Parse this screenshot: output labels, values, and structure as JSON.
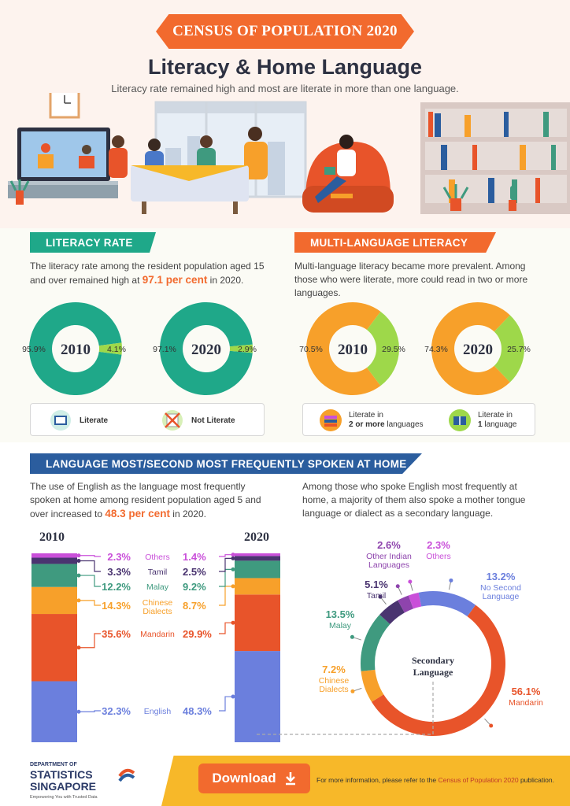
{
  "header": {
    "banner": "CENSUS OF POPULATION 2020",
    "title": "Literacy & Home Language",
    "subtitle": "Literacy rate remained high and most are literate in more than one language."
  },
  "literacy": {
    "heading": "LITERACY RATE",
    "text_before": "The literacy rate among the resident population aged 15 and over remained high at ",
    "highlight": "97.1 per cent",
    "text_after": " in 2020.",
    "legend": {
      "literate": "Literate",
      "not_literate": "Not Literate"
    }
  },
  "multilang": {
    "heading": "MULTI-LANGUAGE LITERACY",
    "text": "Multi-language literacy became more prevalent. Among those who were literate, more could read in two or more languages.",
    "legend": {
      "two_pre": "Literate in",
      "two_bold": "2 or more",
      "two_post": " languages",
      "one_pre": "Literate in",
      "one_bold": "1",
      "one_post": " language"
    }
  },
  "home": {
    "heading": "LANGUAGE MOST/SECOND MOST FREQUENTLY SPOKEN AT HOME",
    "left_before": "The use of English as the language most frequently spoken at home among resident population aged 5 and over increased to ",
    "left_highlight": "48.3 per cent",
    "left_after": " in 2020.",
    "right_text": "Among those who spoke English most frequently at home, a majority of them also spoke a mother tongue language or dialect as a secondary language."
  },
  "footer": {
    "download": "Download",
    "info_before": "For more information, please refer to the ",
    "info_link": "Census of Population 2020",
    "info_after": " publication.",
    "logo_top": "DEPARTMENT OF",
    "logo_mid": "STATISTICS",
    "logo_bot": "SINGAPORE",
    "logo_tag": "Empowering You with Trusted Data"
  },
  "colors": {
    "green": "#1fa889",
    "light_green": "#9ed84a",
    "orange": "#f26a2e",
    "amber": "#f7a02a",
    "english": "#6b7fdd",
    "mandarin": "#e8542a",
    "dialects": "#f7a02a",
    "malay": "#3f9a7f",
    "tamil": "#4a3470",
    "others": "#c94fd9",
    "indian": "#8e44ad",
    "no_second": "#6b7fdd"
  },
  "chart_data": [
    {
      "type": "pie",
      "name": "literacy-2010",
      "title": "2010",
      "labels": [
        "Literate",
        "Not Literate"
      ],
      "values": [
        95.9,
        4.1
      ],
      "value_labels": [
        "95.9%",
        "4.1%"
      ]
    },
    {
      "type": "pie",
      "name": "literacy-2020",
      "title": "2020",
      "labels": [
        "Literate",
        "Not Literate"
      ],
      "values": [
        97.1,
        2.9
      ],
      "value_labels": [
        "97.1%",
        "2.9%"
      ]
    },
    {
      "type": "pie",
      "name": "multilang-2010",
      "title": "2010",
      "labels": [
        "Literate in 2 or more languages",
        "Literate in 1 language"
      ],
      "values": [
        70.5,
        29.5
      ],
      "value_labels": [
        "70.5%",
        "29.5%"
      ]
    },
    {
      "type": "pie",
      "name": "multilang-2020",
      "title": "2020",
      "labels": [
        "Literate in 2 or more languages",
        "Literate in 1 language"
      ],
      "values": [
        74.3,
        25.7
      ],
      "value_labels": [
        "74.3%",
        "25.7%"
      ]
    },
    {
      "type": "bar",
      "name": "home-language",
      "stacked": true,
      "categories": [
        "2010",
        "2020"
      ],
      "series": [
        {
          "name": "English",
          "values": [
            32.3,
            48.3
          ],
          "value_labels": [
            "32.3%",
            "48.3%"
          ]
        },
        {
          "name": "Mandarin",
          "values": [
            35.6,
            29.9
          ],
          "value_labels": [
            "35.6%",
            "29.9%"
          ]
        },
        {
          "name": "Chinese Dialects",
          "values": [
            14.3,
            8.7
          ],
          "value_labels": [
            "14.3%",
            "8.7%"
          ]
        },
        {
          "name": "Malay",
          "values": [
            12.2,
            9.2
          ],
          "value_labels": [
            "12.2%",
            "9.2%"
          ]
        },
        {
          "name": "Tamil",
          "values": [
            3.3,
            2.5
          ],
          "value_labels": [
            "3.3%",
            "2.5%"
          ]
        },
        {
          "name": "Others",
          "values": [
            2.3,
            1.4
          ],
          "value_labels": [
            "2.3%",
            "1.4%"
          ]
        }
      ],
      "series_labels": [
        "English",
        "Mandarin",
        "Chinese\nDialects",
        "Malay",
        "Tamil",
        "Others"
      ]
    },
    {
      "type": "pie",
      "name": "secondary-language",
      "title": "Secondary Language",
      "labels": [
        "Mandarin",
        "Chinese Dialects",
        "Malay",
        "Tamil",
        "Other Indian Languages",
        "Others",
        "No Second Language"
      ],
      "values": [
        56.1,
        7.2,
        13.5,
        5.1,
        2.6,
        2.3,
        13.2
      ],
      "value_labels": [
        "56.1%",
        "7.2%",
        "13.5%",
        "5.1%",
        "2.6%",
        "2.3%",
        "13.2%"
      ],
      "display_labels": [
        "Mandarin",
        "Chinese\nDialects",
        "Malay",
        "Tamil",
        "Other Indian\nLanguages",
        "Others",
        "No Second\nLanguage"
      ]
    }
  ]
}
